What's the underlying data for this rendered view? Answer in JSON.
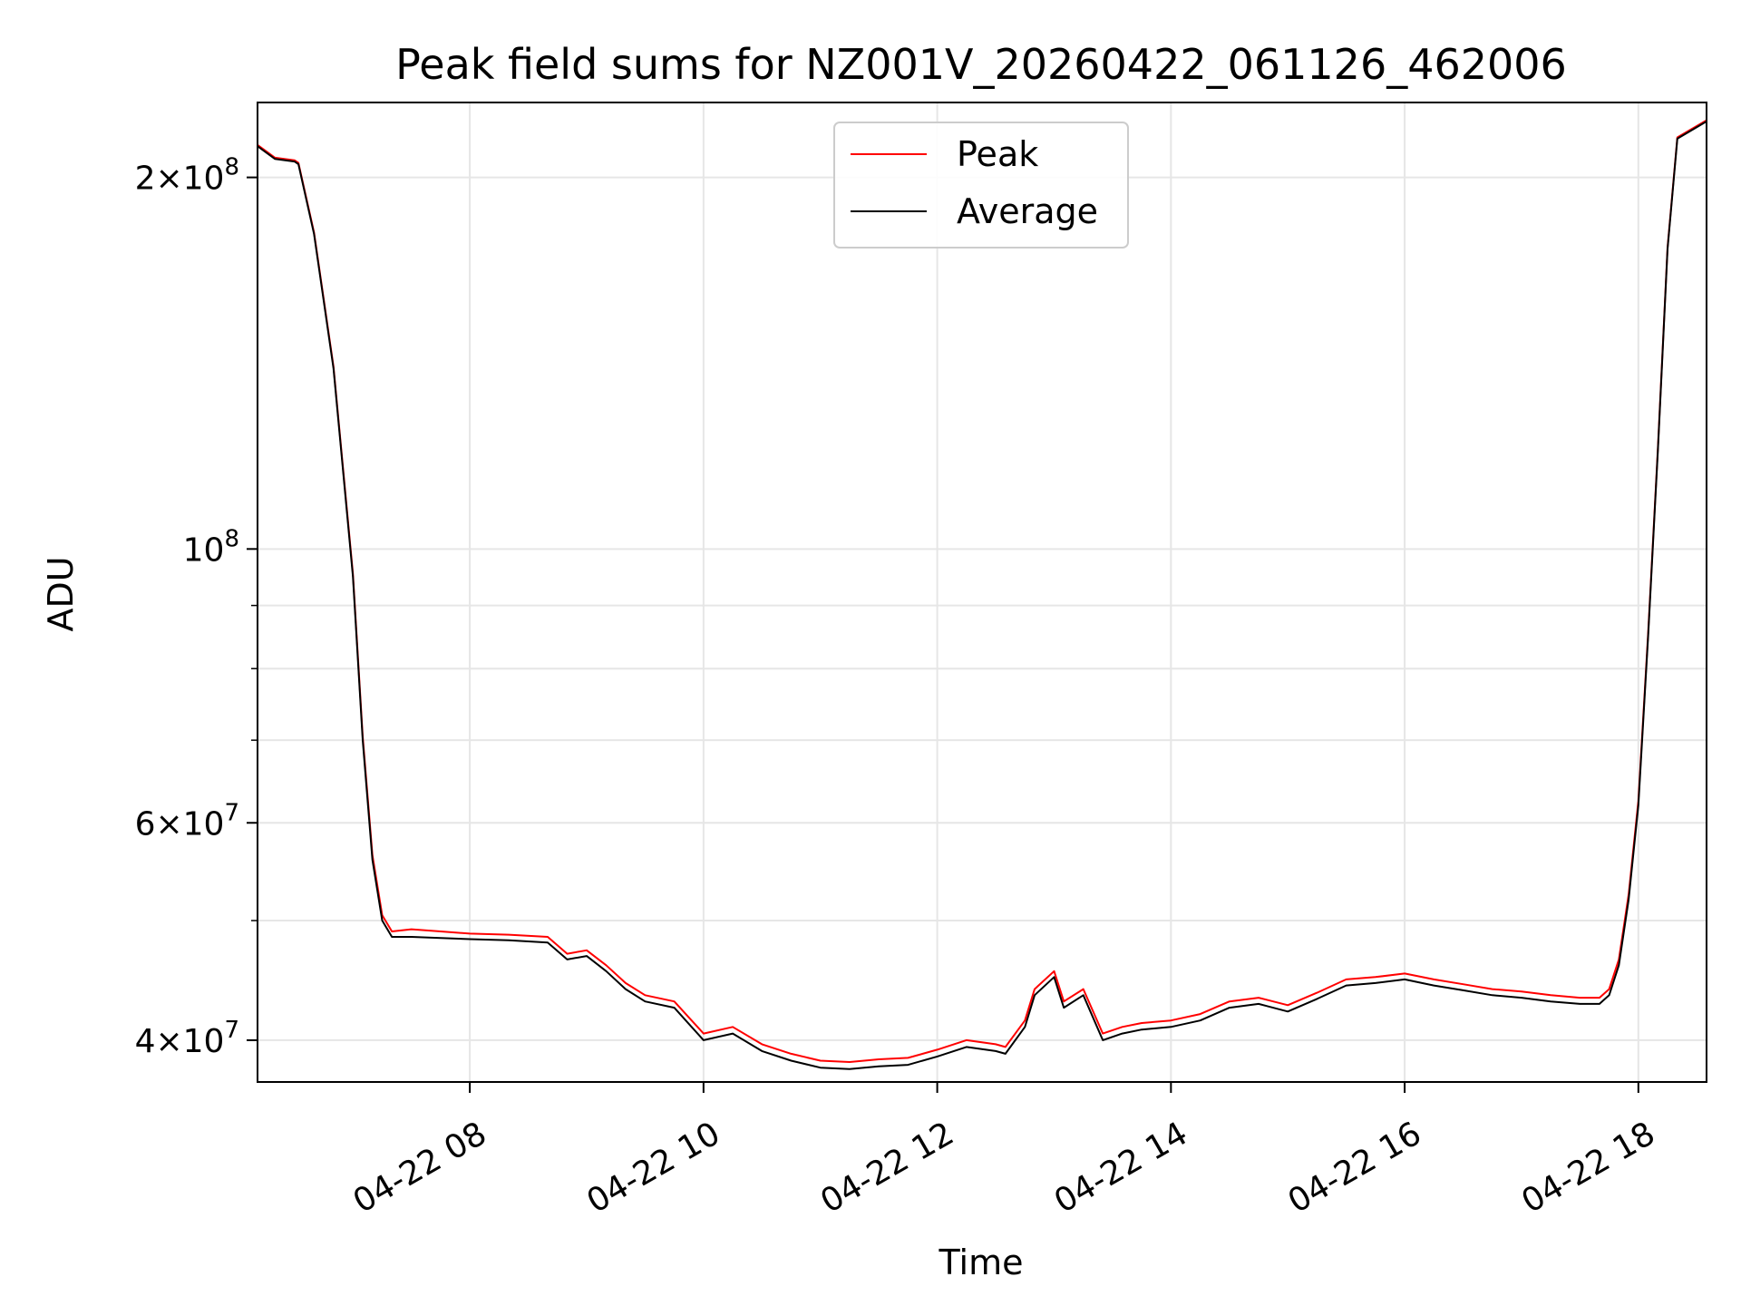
{
  "chart_data": {
    "type": "line",
    "title": "Peak field sums for NZ001V_20260422_061126_462006",
    "xlabel": "Time",
    "ylabel": "ADU",
    "yscale": "log",
    "grid": true,
    "legend": {
      "placement": "upper center",
      "entries": [
        "Peak",
        "Average"
      ]
    },
    "xlim": [
      "2026-04-22 06:11",
      "2026-04-22 18:35"
    ],
    "ylim": [
      37000000,
      230000000
    ],
    "x_ticks": [
      {
        "value": "2026-04-22 08:00",
        "label": "04-22 08"
      },
      {
        "value": "2026-04-22 10:00",
        "label": "04-22 10"
      },
      {
        "value": "2026-04-22 12:00",
        "label": "04-22 12"
      },
      {
        "value": "2026-04-22 14:00",
        "label": "04-22 14"
      },
      {
        "value": "2026-04-22 16:00",
        "label": "04-22 16"
      },
      {
        "value": "2026-04-22 18:00",
        "label": "04-22 18"
      }
    ],
    "y_ticks": [
      {
        "value": 40000000,
        "base": "4",
        "exp": "7"
      },
      {
        "value": 60000000,
        "base": "6",
        "exp": "7"
      },
      {
        "value": 100000000,
        "base": "",
        "exp": "8"
      },
      {
        "value": 200000000,
        "base": "2",
        "exp": "8"
      }
    ],
    "y_minor_ticks": [
      50000000,
      70000000,
      80000000,
      90000000
    ],
    "series": [
      {
        "name": "Average",
        "color": "#000000",
        "x": [
          "2026-04-22 06:11",
          "2026-04-22 06:20",
          "2026-04-22 06:30",
          "2026-04-22 06:32",
          "2026-04-22 06:40",
          "2026-04-22 06:50",
          "2026-04-22 07:00",
          "2026-04-22 07:05",
          "2026-04-22 07:10",
          "2026-04-22 07:15",
          "2026-04-22 07:20",
          "2026-04-22 07:30",
          "2026-04-22 07:45",
          "2026-04-22 08:00",
          "2026-04-22 08:20",
          "2026-04-22 08:40",
          "2026-04-22 08:50",
          "2026-04-22 09:00",
          "2026-04-22 09:10",
          "2026-04-22 09:20",
          "2026-04-22 09:30",
          "2026-04-22 09:45",
          "2026-04-22 10:00",
          "2026-04-22 10:15",
          "2026-04-22 10:30",
          "2026-04-22 10:45",
          "2026-04-22 11:00",
          "2026-04-22 11:15",
          "2026-04-22 11:30",
          "2026-04-22 11:45",
          "2026-04-22 12:00",
          "2026-04-22 12:15",
          "2026-04-22 12:30",
          "2026-04-22 12:35",
          "2026-04-22 12:45",
          "2026-04-22 12:50",
          "2026-04-22 13:00",
          "2026-04-22 13:05",
          "2026-04-22 13:15",
          "2026-04-22 13:25",
          "2026-04-22 13:35",
          "2026-04-22 13:45",
          "2026-04-22 14:00",
          "2026-04-22 14:15",
          "2026-04-22 14:30",
          "2026-04-22 14:45",
          "2026-04-22 15:00",
          "2026-04-22 15:15",
          "2026-04-22 15:30",
          "2026-04-22 15:45",
          "2026-04-22 16:00",
          "2026-04-22 16:15",
          "2026-04-22 16:30",
          "2026-04-22 16:45",
          "2026-04-22 17:00",
          "2026-04-22 17:15",
          "2026-04-22 17:30",
          "2026-04-22 17:40",
          "2026-04-22 17:45",
          "2026-04-22 17:50",
          "2026-04-22 17:55",
          "2026-04-22 18:00",
          "2026-04-22 18:05",
          "2026-04-22 18:10",
          "2026-04-22 18:15",
          "2026-04-22 18:20",
          "2026-04-22 18:35"
        ],
        "y": [
          212000000,
          207000000,
          206000000,
          205000000,
          180000000,
          140000000,
          95000000,
          70000000,
          56000000,
          50000000,
          48500000,
          48500000,
          48400000,
          48300000,
          48200000,
          48000000,
          46500000,
          46800000,
          45500000,
          44000000,
          43000000,
          42500000,
          40000000,
          40500000,
          39200000,
          38500000,
          38000000,
          37900000,
          38100000,
          38200000,
          38800000,
          39500000,
          39200000,
          39000000,
          41000000,
          43500000,
          45000000,
          42500000,
          43500000,
          40000000,
          40500000,
          40800000,
          41000000,
          41500000,
          42500000,
          42800000,
          42200000,
          43200000,
          44300000,
          44500000,
          44800000,
          44300000,
          43900000,
          43500000,
          43300000,
          43000000,
          42800000,
          42800000,
          43500000,
          46000000,
          52000000,
          62000000,
          85000000,
          120000000,
          175000000,
          215000000,
          222000000
        ]
      },
      {
        "name": "Peak",
        "color": "#ff0000",
        "x": [
          "2026-04-22 06:11",
          "2026-04-22 06:20",
          "2026-04-22 06:30",
          "2026-04-22 06:32",
          "2026-04-22 06:40",
          "2026-04-22 06:50",
          "2026-04-22 07:00",
          "2026-04-22 07:05",
          "2026-04-22 07:10",
          "2026-04-22 07:15",
          "2026-04-22 07:20",
          "2026-04-22 07:30",
          "2026-04-22 07:45",
          "2026-04-22 08:00",
          "2026-04-22 08:20",
          "2026-04-22 08:40",
          "2026-04-22 08:50",
          "2026-04-22 09:00",
          "2026-04-22 09:10",
          "2026-04-22 09:20",
          "2026-04-22 09:30",
          "2026-04-22 09:45",
          "2026-04-22 10:00",
          "2026-04-22 10:15",
          "2026-04-22 10:30",
          "2026-04-22 10:45",
          "2026-04-22 11:00",
          "2026-04-22 11:15",
          "2026-04-22 11:30",
          "2026-04-22 11:45",
          "2026-04-22 12:00",
          "2026-04-22 12:15",
          "2026-04-22 12:30",
          "2026-04-22 12:35",
          "2026-04-22 12:45",
          "2026-04-22 12:50",
          "2026-04-22 13:00",
          "2026-04-22 13:05",
          "2026-04-22 13:15",
          "2026-04-22 13:25",
          "2026-04-22 13:35",
          "2026-04-22 13:45",
          "2026-04-22 14:00",
          "2026-04-22 14:15",
          "2026-04-22 14:30",
          "2026-04-22 14:45",
          "2026-04-22 15:00",
          "2026-04-22 15:15",
          "2026-04-22 15:30",
          "2026-04-22 15:45",
          "2026-04-22 16:00",
          "2026-04-22 16:15",
          "2026-04-22 16:30",
          "2026-04-22 16:45",
          "2026-04-22 17:00",
          "2026-04-22 17:15",
          "2026-04-22 17:30",
          "2026-04-22 17:40",
          "2026-04-22 17:45",
          "2026-04-22 17:50",
          "2026-04-22 17:55",
          "2026-04-22 18:00",
          "2026-04-22 18:05",
          "2026-04-22 18:10",
          "2026-04-22 18:15",
          "2026-04-22 18:20",
          "2026-04-22 18:35"
        ],
        "y": [
          212500000,
          207500000,
          206500000,
          205500000,
          180500000,
          140500000,
          95500000,
          70500000,
          56500000,
          50500000,
          49000000,
          49200000,
          49000000,
          48800000,
          48700000,
          48500000,
          47000000,
          47300000,
          46000000,
          44500000,
          43500000,
          43000000,
          40500000,
          41000000,
          39700000,
          39000000,
          38500000,
          38400000,
          38600000,
          38700000,
          39300000,
          40000000,
          39700000,
          39500000,
          41500000,
          44000000,
          45500000,
          43000000,
          44000000,
          40500000,
          41000000,
          41300000,
          41500000,
          42000000,
          43000000,
          43300000,
          42700000,
          43700000,
          44800000,
          45000000,
          45300000,
          44800000,
          44400000,
          44000000,
          43800000,
          43500000,
          43300000,
          43300000,
          44000000,
          46500000,
          52500000,
          62500000,
          85500000,
          120500000,
          175500000,
          215500000,
          222500000
        ]
      }
    ]
  }
}
